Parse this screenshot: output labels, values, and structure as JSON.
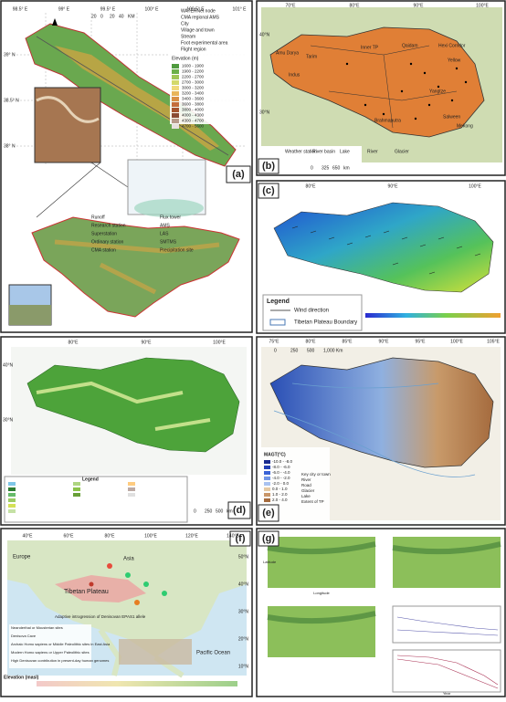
{
  "panel_a": {
    "label": "(a)",
    "lon_ticks": [
      "98.5° E",
      "99° E",
      "99.5° E",
      "100° E",
      "100.5° E",
      "101° E"
    ],
    "lat_ticks": [
      "39° N",
      "38.5° N",
      "38° N"
    ],
    "scale": [
      "20",
      "0",
      "20",
      "40",
      "KM"
    ],
    "legend": [
      "WATERNet node",
      "CMA regional AMS",
      "City",
      "Village and town",
      "Stream",
      "Foot experimental area",
      "Flight region"
    ],
    "elevation_title": "Elevation (m)",
    "elevation_classes": [
      "1600 - 1900",
      "1900 - 2200",
      "2200 - 2700",
      "2700 - 3000",
      "3000 - 3200",
      "3200 - 3400",
      "3400 - 3600",
      "3600 - 3800",
      "3800 - 4000",
      "4000 - 4300",
      "4300 - 4700",
      "4700 - 5600"
    ],
    "station_legend": [
      "Runoff",
      "Research station",
      "Superstation",
      "Ordinary station",
      "CMA station"
    ],
    "station_legend_2": [
      "Flux tower",
      "AMS",
      "LAS",
      "SMTMS",
      "Precipitation site"
    ]
  },
  "panel_b": {
    "label": "(b)",
    "lon_ticks": [
      "70°E",
      "80°E",
      "90°E",
      "100°E"
    ],
    "lat_ticks": [
      "40°N",
      "30°N"
    ],
    "basins": [
      "Amu Darya",
      "Tarim",
      "Inner TP",
      "Qaidam",
      "Hexi Corridor",
      "Indus",
      "Yellow",
      "Yangtze",
      "Brahmaputra",
      "Salween",
      "Mekong"
    ],
    "legend": [
      "Weather station",
      "River basin",
      "Lake",
      "River",
      "Glacier"
    ],
    "scale": [
      "0",
      "325",
      "650",
      "km"
    ]
  },
  "panel_c": {
    "label": "(c)",
    "lon_ticks": [
      "80°E",
      "90°E",
      "100°E"
    ],
    "legend_title": "Legend",
    "legend": [
      "Wind direction",
      "Tibetan Plateau Boundary"
    ]
  },
  "panel_d": {
    "label": "(d)",
    "lon_ticks": [
      "80°E",
      "90°E",
      "100°E"
    ],
    "lat_ticks": [
      "40°N",
      "30°N"
    ],
    "legend_title": "Legend",
    "scale": [
      "0",
      "250",
      "500",
      "km"
    ]
  },
  "panel_e": {
    "label": "(e)",
    "lon_ticks": [
      "75°E",
      "80°E",
      "85°E",
      "90°E",
      "95°E",
      "100°E",
      "105°E"
    ],
    "scale": [
      "0",
      "250",
      "500",
      "1,000 Km"
    ],
    "legend_title": "MAGT(°C)",
    "classes": [
      "-10.0 - -8.0",
      "-8.0 - -6.0",
      "-6.0 - -4.0",
      "-4.0 - -2.0",
      "-2.0 - 0.0",
      "0.0 - 1.0",
      "1.0 - 2.0",
      "2.0 - 4.0"
    ],
    "legend": [
      "Key city or town",
      "River",
      "Road",
      "Glacier",
      "Lake",
      "Extent of TP"
    ]
  },
  "panel_f": {
    "label": "(f)",
    "lon_ticks": [
      "40°E",
      "60°E",
      "80°E",
      "100°E",
      "120°E",
      "140°E"
    ],
    "lat_ticks": [
      "50°N",
      "40°N",
      "30°N",
      "20°N",
      "10°N"
    ],
    "regions": [
      "Europe",
      "Asia",
      "Tibetan Plateau",
      "Pacific Ocean"
    ],
    "legend": [
      "Neanderthal or Mousterian sites",
      "Denisova Cave",
      "Archaic Homo sapiens or Middle Paleolithic sites in East Asia",
      "Modern Homo sapiens or Upper Paleolithic sites",
      "High Denisovan contribution in present-day human genomes"
    ],
    "note": "Adaptive introgression of Denisovan EPAS1 allele",
    "elevation_title": "Elevation (masl)"
  },
  "panel_g": {
    "label": "(g)",
    "axis_labels": [
      "Latitude",
      "Longitude",
      "Year"
    ]
  }
}
